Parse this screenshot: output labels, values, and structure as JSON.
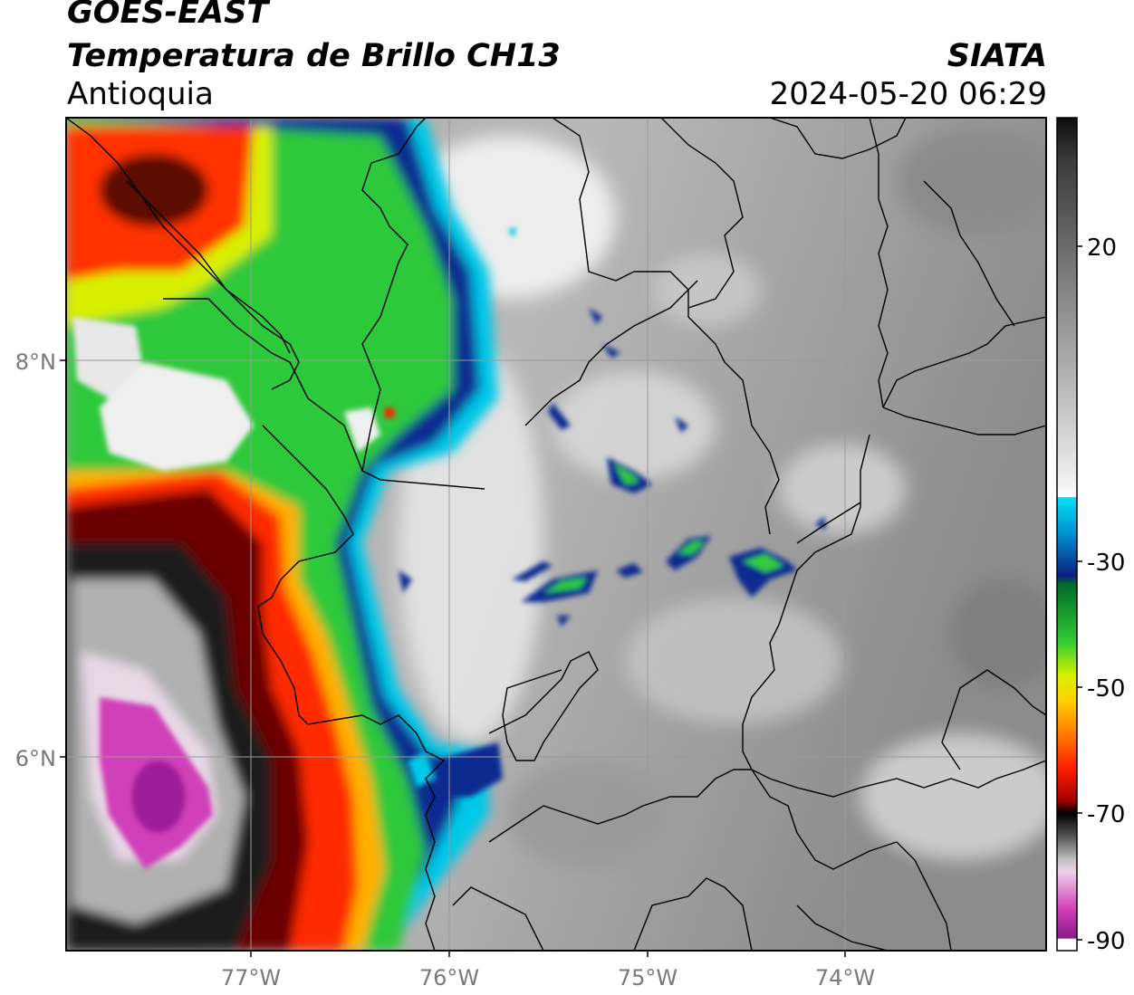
{
  "header": {
    "satellite": "GOES-EAST",
    "product": "Temperatura de Brillo CH13",
    "region": "Antioquia",
    "organization": "SIATA",
    "datetime": "2024-05-20 06:29"
  },
  "axes": {
    "lat_labels": [
      "8°N",
      "6°N"
    ],
    "lon_labels": [
      "77°W",
      "76°W",
      "75°W",
      "74°W"
    ]
  },
  "colorbar": {
    "tick_labels": [
      "20",
      "-30",
      "-50",
      "-70",
      "-90"
    ],
    "unit_hint": "brightness temperature °C",
    "stops": [
      {
        "value": 30,
        "color": "#111111"
      },
      {
        "value": 20,
        "color": "#6e6e6e"
      },
      {
        "value": -10,
        "color": "#e8e8e8"
      },
      {
        "value": -18,
        "color": "#ffffff"
      },
      {
        "value": -19,
        "color": "#00d8f0"
      },
      {
        "value": -30,
        "color": "#0a1e80"
      },
      {
        "value": -31,
        "color": "#006a2a"
      },
      {
        "value": -40,
        "color": "#35cc35"
      },
      {
        "value": -48,
        "color": "#d8f000"
      },
      {
        "value": -52,
        "color": "#ffb000"
      },
      {
        "value": -60,
        "color": "#ff2000"
      },
      {
        "value": -66,
        "color": "#5a0000"
      },
      {
        "value": -70,
        "color": "#000000"
      },
      {
        "value": -80,
        "color": "#e0e0e0"
      },
      {
        "value": -90,
        "color": "#9a1a9a"
      }
    ]
  },
  "colors": {
    "cold_storm_core": "#d040b8",
    "frame": "#000000",
    "grid": "#9a9a9a",
    "border_lines": "#000000"
  }
}
